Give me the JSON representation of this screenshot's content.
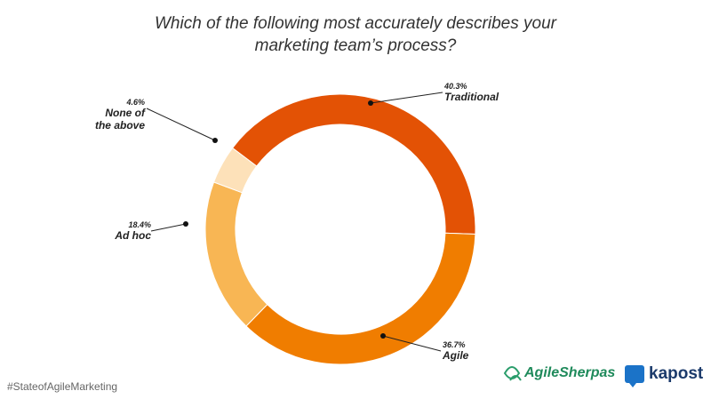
{
  "chart_data": {
    "type": "donut",
    "title": "Which of the following most accurately describes your marketing team’s process?",
    "categories": [
      "Traditional",
      "Agile",
      "Ad hoc",
      "None of the above"
    ],
    "values": [
      40.3,
      36.7,
      18.4,
      4.6
    ],
    "value_labels": [
      "40.3%",
      "36.7%",
      "18.4%",
      "4.6%"
    ],
    "colors": [
      "#e35205",
      "#f07d00",
      "#f8b654",
      "#fde1b9"
    ]
  },
  "footer": {
    "hashtag": "#StateofAgileMarketing",
    "logos": [
      "AgileSherpas",
      "kapost"
    ]
  }
}
